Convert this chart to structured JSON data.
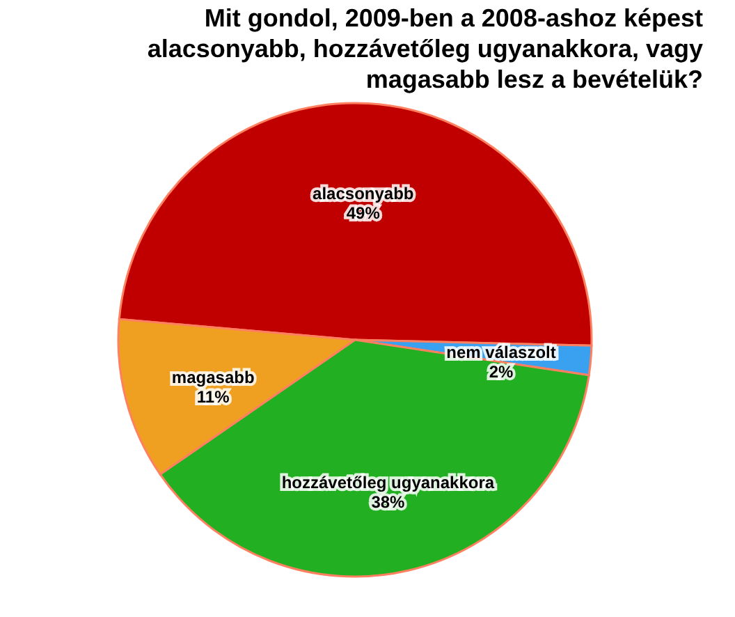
{
  "chart_data": {
    "type": "pie",
    "title": "Mit gondol, 2009-ben a 2008-ashoz képest alacsonyabb, hozzávetőleg ugyanakkora, vagy magasabb lesz a bevételük?",
    "categories": [
      "alacsonyabb",
      "nem válaszolt",
      "hozzávetőleg ugyanakkora",
      "magasabb"
    ],
    "values": [
      49,
      2,
      38,
      11
    ],
    "value_labels": [
      "49%",
      "2%",
      "38%",
      "11%"
    ],
    "colors": [
      "#c00000",
      "#3aa0f0",
      "#22b022",
      "#f0a020"
    ],
    "legend": false
  }
}
